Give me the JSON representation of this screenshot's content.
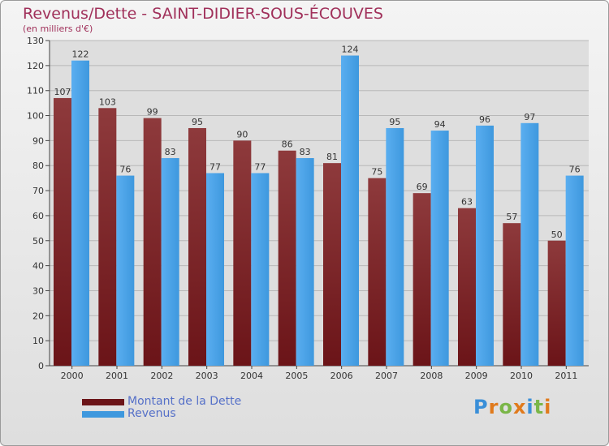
{
  "title": "Revenus/Dette - SAINT-DIDIER-SOUS-ÉCOUVES",
  "subtitle": "(en milliers d'€)",
  "logo_text": "Proxiti",
  "colors": {
    "title": "#a0305a",
    "dette": "#6b1418",
    "revenus": "#3e98de",
    "legend_text": "#5570c8",
    "grid": "#b8b8b8",
    "plot_bg": "#dedede"
  },
  "chart_data": {
    "type": "bar",
    "title": "Revenus/Dette - SAINT-DIDIER-SOUS-ÉCOUVES",
    "ylabel": "(en milliers d'€)",
    "xlabel": "",
    "ylim": [
      0,
      130
    ],
    "yticks": [
      0,
      10,
      20,
      30,
      40,
      50,
      60,
      70,
      80,
      90,
      100,
      110,
      120,
      130
    ],
    "grid": true,
    "legend_position": "bottom-left",
    "categories": [
      "2000",
      "2001",
      "2002",
      "2003",
      "2004",
      "2005",
      "2006",
      "2007",
      "2008",
      "2009",
      "2010",
      "2011"
    ],
    "series": [
      {
        "name": "Montant de la Dette",
        "values": [
          107,
          103,
          99,
          95,
          90,
          86,
          81,
          75,
          69,
          63,
          57,
          50
        ]
      },
      {
        "name": "Revenus",
        "values": [
          122,
          76,
          83,
          77,
          77,
          83,
          124,
          95,
          94,
          96,
          97,
          76
        ]
      }
    ]
  }
}
